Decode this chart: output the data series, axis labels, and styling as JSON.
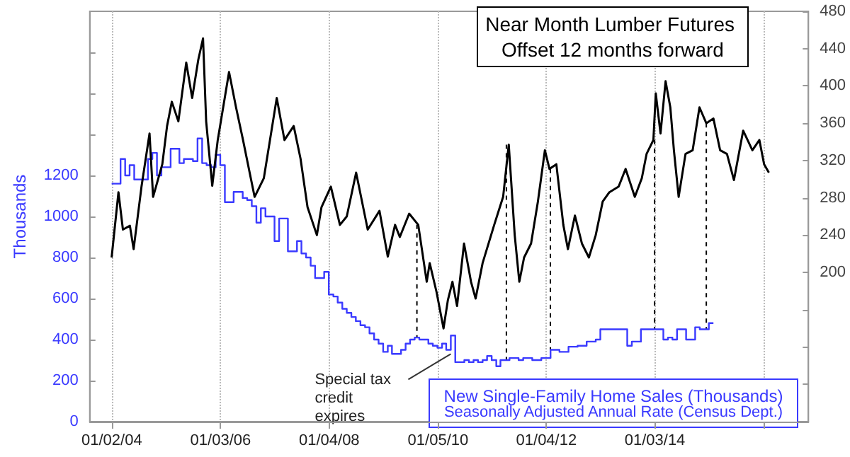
{
  "chart_data": {
    "type": "line",
    "ylabel": "Thousands",
    "annotations": [
      {
        "text": "Special tax credit expires",
        "x": "2010-04-01",
        "y": 330
      },
      "Seasonally Adjusted Annual Rate (Census Dept.)"
    ],
    "xlim": [
      "2003-08-07",
      "2016-11-01"
    ],
    "xticks": [
      {
        "value": "2004-01-02",
        "label": "01/02/04"
      },
      {
        "value": "2006-01-03",
        "label": "01/03/06"
      },
      {
        "value": "2008-01-04",
        "label": "01/04/08"
      },
      {
        "value": "2010-01-05",
        "label": "01/05/10"
      },
      {
        "value": "2012-01-04",
        "label": "01/04/12"
      },
      {
        "value": "2014-01-03",
        "label": "01/03/14"
      },
      {
        "value": "2016-01-02",
        "label": null
      }
    ],
    "ylim": [
      0,
      2000
    ],
    "yticks": [
      0,
      200,
      400,
      600,
      800,
      1000,
      1200,
      {
        "value": 1400,
        "label": null
      },
      {
        "value": 1600,
        "label": null
      },
      {
        "value": 1800,
        "label": null
      }
    ],
    "y2lim": [
      40,
      480
    ],
    "y2ticks": [
      {
        "value": 80,
        "label": null
      },
      {
        "value": 120,
        "label": null
      },
      {
        "value": 160,
        "label": null
      },
      200,
      240,
      280,
      320,
      360,
      400,
      440,
      480
    ],
    "grid": "x",
    "marker": "none",
    "ref_lines": [
      {
        "axis": "x",
        "value": "2009-08-16",
        "label": null,
        "color": "#000000",
        "line_style": "dashed"
      },
      {
        "axis": "x",
        "value": "2011-04-10",
        "label": null,
        "color": "#000000",
        "line_style": "dashed"
      },
      {
        "axis": "x",
        "value": "2012-01-31",
        "label": null,
        "color": "#000000",
        "line_style": "dashed"
      },
      {
        "axis": "x",
        "value": "2014-01-01",
        "label": null,
        "color": "#000000",
        "line_style": "dashed"
      },
      {
        "axis": "x",
        "value": "2014-12-15",
        "label": null,
        "color": "#000000",
        "line_style": "dashed"
      }
    ],
    "series": [
      {
        "name": "Near Month Lumber Futures Offset 12 months forward",
        "axis": "y2",
        "color": "#000000",
        "x": [
          "2004-01-01",
          "2004-02-16",
          "2004-03-17",
          "2004-05-03",
          "2004-05-28",
          "2004-07-20",
          "2004-09-12",
          "2004-10-06",
          "2004-12-07",
          "2005-01-08",
          "2005-02-09",
          "2005-03-25",
          "2005-05-17",
          "2005-06-26",
          "2005-08-06",
          "2005-09-07",
          "2005-09-28",
          "2005-11-08",
          "2005-12-15",
          "2006-03-01",
          "2006-04-17",
          "2006-06-03",
          "2006-08-20",
          "2006-10-21",
          "2007-01-16",
          "2007-03-09",
          "2007-05-10",
          "2007-06-25",
          "2007-08-11",
          "2007-10-13",
          "2007-11-13",
          "2008-01-15",
          "2008-03-16",
          "2008-05-01",
          "2008-07-03",
          "2008-09-19",
          "2008-12-07",
          "2009-02-01",
          "2009-03-22",
          "2009-04-23",
          "2009-06-25",
          "2009-08-25",
          "2009-10-21",
          "2009-11-10",
          "2009-12-26",
          "2010-02-11",
          "2010-03-12",
          "2010-04-12",
          "2010-05-13",
          "2010-06-29",
          "2010-08-15",
          "2010-09-15",
          "2010-11-01",
          "2011-01-18",
          "2011-03-19",
          "2011-04-26",
          "2011-06-05",
          "2011-07-06",
          "2011-08-07",
          "2011-09-23",
          "2011-11-08",
          "2011-12-25",
          "2012-01-25",
          "2012-03-11",
          "2012-04-27",
          "2012-05-28",
          "2012-07-14",
          "2012-08-30",
          "2012-10-16",
          "2012-12-01",
          "2013-01-17",
          "2013-03-03",
          "2013-05-04",
          "2013-06-20",
          "2013-08-21",
          "2013-10-07",
          "2013-11-08",
          "2013-12-24",
          "2014-01-09",
          "2014-02-10",
          "2014-03-16",
          "2014-04-17",
          "2014-05-11",
          "2014-06-12",
          "2014-07-28",
          "2014-09-14",
          "2014-10-30",
          "2014-12-15",
          "2015-02-01",
          "2015-03-18",
          "2015-05-03",
          "2015-06-19",
          "2015-08-20",
          "2015-10-21",
          "2015-12-07",
          "2016-01-08",
          "2016-02-09"
        ],
        "values": [
          216,
          286,
          246,
          250,
          225,
          292,
          349,
          281,
          316,
          357,
          383,
          362,
          425,
          387,
          428,
          451,
          362,
          293,
          342,
          415,
          377,
          342,
          281,
          301,
          387,
          342,
          357,
          322,
          270,
          240,
          270,
          292,
          251,
          260,
          307,
          246,
          266,
          217,
          251,
          238,
          263,
          251,
          190,
          210,
          179,
          140,
          170,
          190,
          164,
          231,
          190,
          172,
          210,
          251,
          281,
          337,
          240,
          190,
          216,
          231,
          276,
          331,
          311,
          316,
          251,
          225,
          261,
          231,
          216,
          240,
          276,
          286,
          292,
          311,
          281,
          301,
          327,
          342,
          392,
          349,
          405,
          377,
          331,
          281,
          327,
          331,
          377,
          360,
          365,
          331,
          327,
          299,
          352,
          331,
          342,
          316,
          307
        ]
      },
      {
        "name": "New Single-Family Home Sales (Thousands)",
        "type": "step",
        "axis": "y",
        "color": "#3a3aff",
        "x": [
          "2004-01",
          "2004-03",
          "2004-04",
          "2004-05",
          "2004-06",
          "2004-09",
          "2004-10",
          "2004-11",
          "2004-12",
          "2005-02",
          "2005-04",
          "2005-05",
          "2005-07",
          "2005-08",
          "2005-09",
          "2005-10",
          "2005-11",
          "2005-12",
          "2006-01",
          "2006-02",
          "2006-04",
          "2006-06",
          "2006-07",
          "2006-08",
          "2006-09",
          "2006-10",
          "2006-11",
          "2007-01",
          "2007-02",
          "2007-04",
          "2007-06",
          "2007-07",
          "2007-08",
          "2007-09",
          "2007-10",
          "2007-12",
          "2008-01",
          "2008-02",
          "2008-03",
          "2008-04",
          "2008-05",
          "2008-06",
          "2008-07",
          "2008-08",
          "2008-09",
          "2008-10",
          "2008-11",
          "2008-12",
          "2009-01",
          "2009-02",
          "2009-03",
          "2009-05",
          "2009-06",
          "2009-07",
          "2009-08",
          "2009-09",
          "2009-11",
          "2009-12",
          "2010-01",
          "2010-02",
          "2010-03",
          "2010-04",
          "2010-05",
          "2010-07",
          "2010-08",
          "2010-09",
          "2010-10",
          "2010-11",
          "2010-12",
          "2011-01",
          "2011-02",
          "2011-03",
          "2011-05",
          "2011-07",
          "2011-08",
          "2011-10",
          "2011-12",
          "2012-02",
          "2012-04",
          "2012-06",
          "2012-08",
          "2012-10",
          "2012-12",
          "2013-01",
          "2013-07",
          "2013-08",
          "2013-10",
          "2014-03",
          "2014-04",
          "2014-05",
          "2014-06",
          "2014-08",
          "2014-10",
          "2014-11",
          "2015-01",
          "2015-02"
        ],
        "values": [
          1160,
          1280,
          1200,
          1250,
          1180,
          1280,
          1310,
          1200,
          1240,
          1330,
          1260,
          1280,
          1270,
          1380,
          1260,
          1250,
          1240,
          1300,
          1250,
          1070,
          1120,
          1090,
          1080,
          1050,
          970,
          1040,
          1000,
          880,
          990,
          830,
          880,
          820,
          800,
          760,
          700,
          730,
          620,
          610,
          580,
          550,
          530,
          510,
          490,
          470,
          460,
          430,
          400,
          380,
          340,
          370,
          330,
          350,
          380,
          400,
          410,
          400,
          380,
          370,
          360,
          380,
          350,
          420,
          290,
          300,
          290,
          300,
          290,
          300,
          320,
          300,
          270,
          300,
          310,
          300,
          310,
          300,
          310,
          350,
          340,
          365,
          370,
          390,
          400,
          450,
          370,
          390,
          450,
          400,
          410,
          400,
          450,
          400,
          460,
          450,
          480,
          480
        ]
      }
    ]
  }
}
